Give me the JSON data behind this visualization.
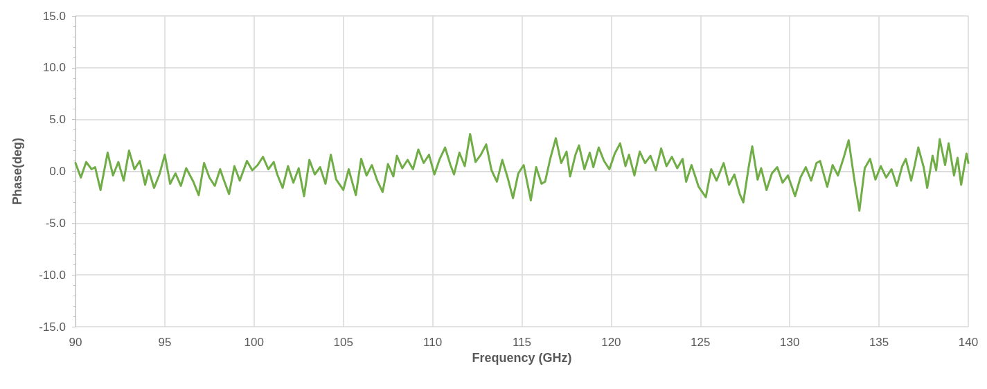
{
  "chart_data": {
    "type": "line",
    "xlabel": "Frequency (GHz)",
    "ylabel": "Phase(deg)",
    "xlim": [
      90,
      140
    ],
    "xticks": [
      90,
      95,
      100,
      105,
      110,
      115,
      120,
      125,
      130,
      135,
      140
    ],
    "ylim": [
      -15,
      15
    ],
    "yticks": [
      {
        "value": -15,
        "label": "-15.0"
      },
      {
        "value": -10,
        "label": "-10.0"
      },
      {
        "value": -5,
        "label": "-5.0"
      },
      {
        "value": 0,
        "label": "0.0"
      },
      {
        "value": 5,
        "label": "5.0"
      },
      {
        "value": 10,
        "label": "10.0"
      },
      {
        "value": 15,
        "label": "15.0"
      }
    ],
    "grid": true,
    "marker": "none",
    "line_style": "solid",
    "series": [
      {
        "color": "#70ad47",
        "x": [
          90,
          90.3,
          90.6,
          90.9,
          91.1,
          91.4,
          91.8,
          92.1,
          92.4,
          92.7,
          93,
          93.3,
          93.6,
          93.9,
          94.1,
          94.4,
          94.7,
          95,
          95.3,
          95.6,
          95.9,
          96.2,
          96.6,
          96.9,
          97.2,
          97.5,
          97.8,
          98.1,
          98.3,
          98.6,
          98.9,
          99.2,
          99.6,
          99.9,
          100.2,
          100.5,
          100.8,
          101.1,
          101.3,
          101.6,
          101.9,
          102.2,
          102.5,
          102.8,
          103.1,
          103.4,
          103.7,
          104,
          104.3,
          104.6,
          105,
          105.3,
          105.7,
          106,
          106.3,
          106.6,
          106.9,
          107.2,
          107.5,
          107.8,
          108,
          108.3,
          108.6,
          108.9,
          109.2,
          109.5,
          109.8,
          110.1,
          110.4,
          110.7,
          111,
          111.2,
          111.5,
          111.8,
          112.1,
          112.4,
          112.7,
          113,
          113.3,
          113.6,
          113.9,
          114.2,
          114.5,
          114.8,
          115.1,
          115.5,
          115.8,
          116.1,
          116.3,
          116.6,
          116.9,
          117.2,
          117.5,
          117.7,
          118,
          118.2,
          118.5,
          118.8,
          119,
          119.3,
          119.6,
          119.9,
          120.2,
          120.5,
          120.8,
          121,
          121.3,
          121.6,
          121.9,
          122.2,
          122.5,
          122.8,
          123.1,
          123.4,
          123.7,
          124,
          124.2,
          124.5,
          124.9,
          125.3,
          125.6,
          125.9,
          126.3,
          126.6,
          126.9,
          127.2,
          127.4,
          127.7,
          127.9,
          128.2,
          128.4,
          128.7,
          129,
          129.3,
          129.6,
          129.9,
          130.3,
          130.6,
          130.9,
          131.2,
          131.5,
          131.7,
          132.1,
          132.4,
          132.7,
          133,
          133.3,
          133.6,
          133.9,
          134.2,
          134.5,
          134.8,
          135.1,
          135.4,
          135.7,
          136,
          136.3,
          136.5,
          136.8,
          137,
          137.2,
          137.5,
          137.7,
          138,
          138.2,
          138.4,
          138.7,
          138.9,
          139.2,
          139.4,
          139.6,
          139.9,
          140
        ],
        "values": [
          0.8,
          -0.6,
          0.9,
          0.2,
          0.4,
          -1.8,
          1.8,
          -0.4,
          0.9,
          -0.9,
          2,
          0.2,
          1,
          -1.3,
          0.1,
          -1.6,
          -0.3,
          1.6,
          -1.2,
          -0.2,
          -1.4,
          0.3,
          -1,
          -2.3,
          0.8,
          -0.6,
          -1.4,
          0.2,
          -0.8,
          -2.2,
          0.5,
          -0.9,
          1,
          0.1,
          0.6,
          1.4,
          0.2,
          0.9,
          -0.3,
          -1.6,
          0.5,
          -1.1,
          0.3,
          -2.4,
          1.1,
          -0.3,
          0.4,
          -1.2,
          1.6,
          -0.8,
          -1.8,
          0.2,
          -2.3,
          1.2,
          -0.4,
          0.6,
          -0.9,
          -2,
          0.7,
          -0.5,
          1.5,
          0.3,
          1.1,
          0.2,
          2.1,
          0.8,
          1.6,
          -0.3,
          1.2,
          2.3,
          0.6,
          -0.3,
          1.8,
          0.5,
          3.6,
          0.9,
          1.6,
          2.6,
          0.1,
          -1,
          1.1,
          -0.6,
          -2.6,
          -0.2,
          0.6,
          -2.8,
          0.4,
          -1.2,
          -1,
          1.3,
          3.2,
          0.8,
          1.9,
          -0.5,
          1.6,
          2.5,
          0.2,
          1.8,
          0.4,
          2.3,
          1,
          0.2,
          1.7,
          2.7,
          0.5,
          1.6,
          -0.4,
          1.9,
          0.8,
          1.5,
          0.1,
          2.2,
          0.5,
          1.4,
          0.3,
          1.2,
          -1,
          0.6,
          -1.5,
          -2.5,
          0.2,
          -0.9,
          0.8,
          -1.3,
          -0.3,
          -2.2,
          -3,
          0.4,
          2.4,
          -0.8,
          0.3,
          -1.8,
          -0.2,
          0.4,
          -1.1,
          -0.4,
          -2.4,
          -0.6,
          0.4,
          -0.9,
          0.8,
          1,
          -1.5,
          0.6,
          -0.4,
          1.2,
          3,
          -0.6,
          -3.8,
          0.3,
          1.2,
          -0.8,
          0.5,
          -0.6,
          0.2,
          -1.4,
          0.5,
          1.2,
          -0.9,
          0.6,
          2.3,
          0.4,
          -1.6,
          1.5,
          0.1,
          3.1,
          0.6,
          2.7,
          -0.4,
          1.3,
          -1.3,
          1.7,
          0.8
        ]
      }
    ]
  }
}
